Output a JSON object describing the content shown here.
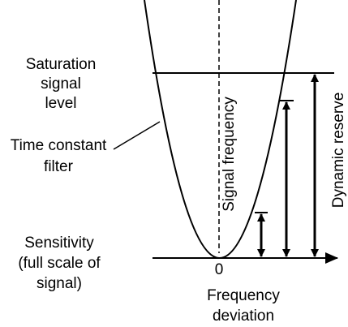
{
  "labels": {
    "saturation": [
      "Saturation",
      "signal",
      "level"
    ],
    "filter": [
      "Time constant",
      "filter"
    ],
    "sensitivity": [
      "Sensitivity",
      "(full scale of",
      "signal)"
    ],
    "origin": "0",
    "x_axis": [
      "Frequency",
      "deviation"
    ],
    "signal_frequency": "Signal frequency",
    "dynamic_reserve": "Dynamic reserve"
  }
}
